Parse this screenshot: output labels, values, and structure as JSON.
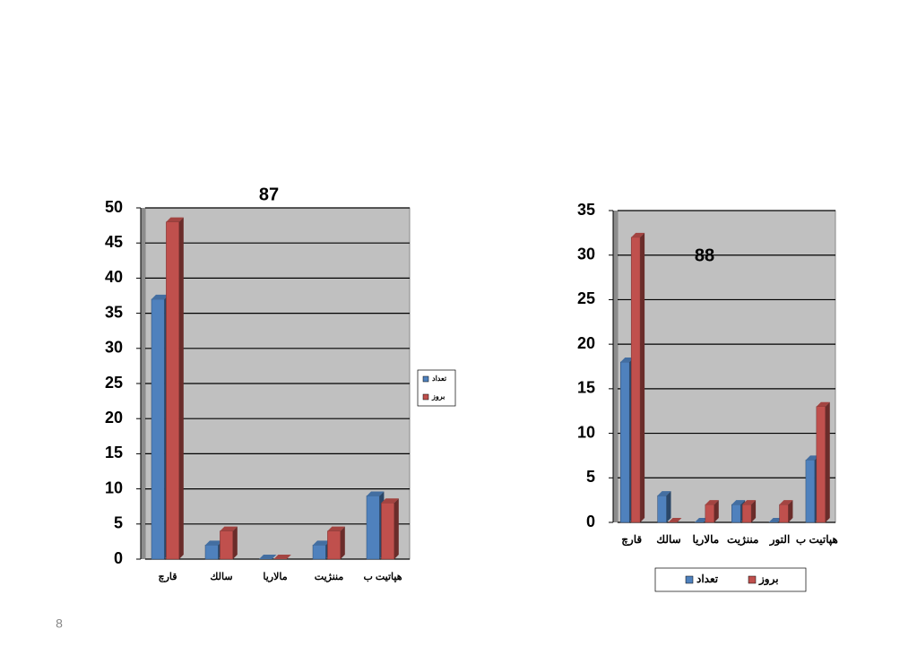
{
  "chart_data": [
    {
      "type": "bar",
      "title": "87",
      "categories": [
        "قارچ",
        "سالك",
        "مالاريا",
        "مننژيت",
        "هپاتيت ب"
      ],
      "series": [
        {
          "name": "تعداد",
          "color": "#4f81bd",
          "values": [
            37,
            2,
            0,
            2,
            9
          ]
        },
        {
          "name": "بروز",
          "color": "#c0504d",
          "values": [
            48,
            4,
            0,
            4,
            8
          ]
        }
      ],
      "ylim": [
        0,
        50
      ],
      "yticks": [
        0,
        5,
        10,
        15,
        20,
        25,
        30,
        35,
        40,
        45,
        50
      ],
      "grid": true,
      "legend": "right"
    },
    {
      "type": "bar",
      "title": "88",
      "categories": [
        "قارچ",
        "سالك",
        "مالاريا",
        "مننژيت",
        "التور",
        "هپاتيت ب"
      ],
      "series": [
        {
          "name": "تعداد",
          "color": "#4f81bd",
          "values": [
            18,
            3,
            0,
            2,
            0,
            7
          ]
        },
        {
          "name": "بروز",
          "color": "#c0504d",
          "values": [
            32,
            0,
            2,
            2,
            2,
            13
          ]
        }
      ],
      "ylim": [
        0,
        35
      ],
      "yticks": [
        0,
        5,
        10,
        15,
        20,
        25,
        30,
        35
      ],
      "grid": true,
      "legend": "bottom"
    }
  ],
  "slide_number": 8
}
